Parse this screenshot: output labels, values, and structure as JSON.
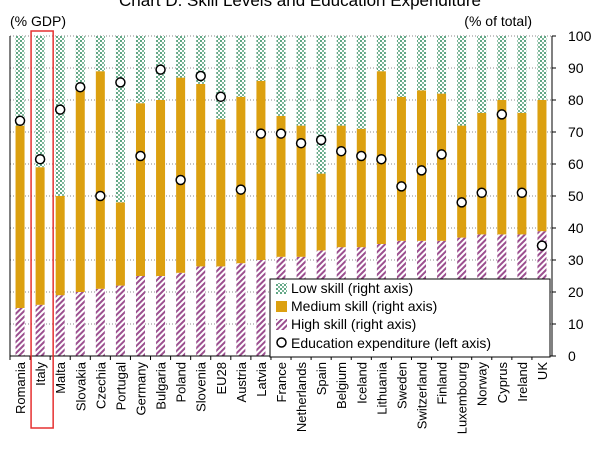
{
  "chart_data": {
    "type": "bar",
    "title": "Chart D. Skill Levels and Education Expenditure",
    "left_axis_label": "(% GDP)",
    "right_axis_label": "(% of total)",
    "right_ylim": [
      0,
      100
    ],
    "right_ticks": [
      "0",
      "10",
      "20",
      "30",
      "40",
      "50",
      "60",
      "70",
      "80",
      "90",
      "100"
    ],
    "left_axis_tick_labels": "none shown",
    "stacked": true,
    "grid": "horizontal dotted",
    "legend_position": "bottom-right inside plot",
    "highlighted_category": "Italy",
    "categories": [
      "Romania",
      "Italy",
      "Malta",
      "Slovakia",
      "Czechia",
      "Portugal",
      "Germany",
      "Bulgaria",
      "Poland",
      "Slovenia",
      "EU28",
      "Austria",
      "Latvia",
      "France",
      "Netherlands",
      "Spain",
      "Belgium",
      "Iceland",
      "Lithuania",
      "Sweden",
      "Switzerland",
      "Finland",
      "Luxembourg",
      "Norway",
      "Cyprus",
      "Ireland",
      "UK"
    ],
    "series": [
      {
        "name": "High skill (right axis)",
        "type": "bar",
        "color": "#9b4f8f",
        "values": [
          15,
          16,
          19,
          20,
          21,
          22,
          25,
          25,
          26,
          28,
          28,
          29,
          30,
          31,
          31,
          33,
          34,
          34,
          35,
          36,
          36,
          36,
          37,
          38,
          38,
          38,
          39
        ]
      },
      {
        "name": "Medium skill (right axis)",
        "type": "bar",
        "color": "#dca010",
        "values": [
          57,
          43,
          31,
          63,
          68,
          26,
          54,
          55,
          61,
          57,
          46,
          52,
          56,
          44,
          41,
          24,
          38,
          37,
          54,
          45,
          47,
          46,
          35,
          38,
          42,
          38,
          41
        ]
      },
      {
        "name": "Low skill (right axis)",
        "type": "bar",
        "color": "#7fb89a",
        "values": [
          28,
          41,
          50,
          17,
          11,
          52,
          21,
          20,
          13,
          15,
          26,
          19,
          14,
          25,
          28,
          43,
          28,
          29,
          11,
          19,
          17,
          18,
          28,
          24,
          20,
          24,
          20
        ]
      },
      {
        "name": "Education expenditure (left axis)",
        "type": "scatter",
        "axis": "left",
        "values": [
          73.5,
          61.5,
          77,
          84,
          50,
          85.5,
          62.5,
          89.5,
          55,
          87.5,
          81,
          52,
          69.5,
          69.5,
          66.5,
          67.5,
          64,
          62.5,
          61.5,
          53,
          58,
          63,
          48,
          51,
          75.5,
          51,
          34.5
        ]
      }
    ]
  },
  "colors": {
    "high": "#9b4f8f",
    "medium": "#dca010",
    "low": "#7fb89a",
    "highlight_box": "#e53030",
    "grid": "#888888"
  }
}
